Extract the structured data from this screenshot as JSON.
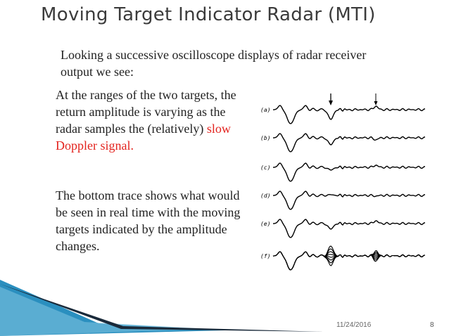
{
  "slide": {
    "title": "Moving Target Indicator Radar (MTI)",
    "intro": "Looking a successive oscilloscope displays of radar receiver output we see:",
    "paragraph1": {
      "text": "At the ranges of the two targets, the return amplitude is varying as the radar samples the (relatively) ",
      "highlight": "slow Doppler signal."
    },
    "paragraph2": "The bottom trace shows what would be seen in real time with the moving targets indicated by the amplitude changes.",
    "figure": {
      "trace_labels": [
        "(a)",
        "(b)",
        "(c)",
        "(d)",
        "(e)",
        "(f)"
      ]
    },
    "footer": {
      "date": "11/24/2016",
      "page": "8"
    },
    "colors": {
      "title": "#3b3b3b",
      "highlight": "#e3231e",
      "deco_blue": "#2a8fbf",
      "deco_dark": "#1a2a3a"
    }
  }
}
